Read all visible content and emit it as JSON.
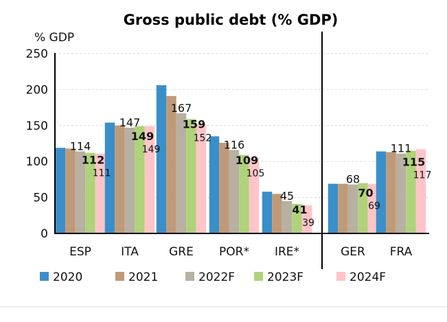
{
  "chart_data": {
    "type": "bar",
    "title": "Gross public debt (% GDP)",
    "ylabel": "% GDP",
    "xlabel": "",
    "ylim": [
      0,
      250
    ],
    "yticks": [
      0,
      50,
      100,
      150,
      200,
      250
    ],
    "grid": true,
    "legend_position": "bottom",
    "categories": [
      "ESP",
      "ITA",
      "GRE",
      "POR*",
      "IRE*",
      "GER",
      "FRA"
    ],
    "series": [
      {
        "name": "2020",
        "color": "#3a8fc9",
        "values": [
          119,
          154,
          206,
          135,
          58,
          69,
          114
        ],
        "labels": [
          null,
          null,
          null,
          null,
          null,
          null,
          null
        ]
      },
      {
        "name": "2021",
        "color": "#c09a78",
        "values": [
          118,
          150,
          191,
          126,
          55,
          69,
          113
        ],
        "labels": [
          null,
          null,
          null,
          null,
          null,
          null,
          null
        ]
      },
      {
        "name": "2022F",
        "color": "#b8b0a2",
        "values": [
          114,
          147,
          167,
          116,
          45,
          68,
          111
        ],
        "labels": [
          "114",
          "147",
          "167",
          "116",
          "45",
          "68",
          "111"
        ]
      },
      {
        "name": "2023F",
        "color": "#b0d27a",
        "values": [
          112,
          149,
          159,
          109,
          41,
          70,
          115
        ],
        "labels": [
          "112",
          "149",
          "159",
          "109",
          "41",
          "70",
          "115"
        ]
      },
      {
        "name": "2024F",
        "color": "#ffc4c8",
        "values": [
          111,
          149,
          152,
          105,
          39,
          69,
          117
        ],
        "labels": [
          "111",
          "149",
          "152",
          "105",
          "39",
          "69",
          "117"
        ]
      }
    ]
  }
}
